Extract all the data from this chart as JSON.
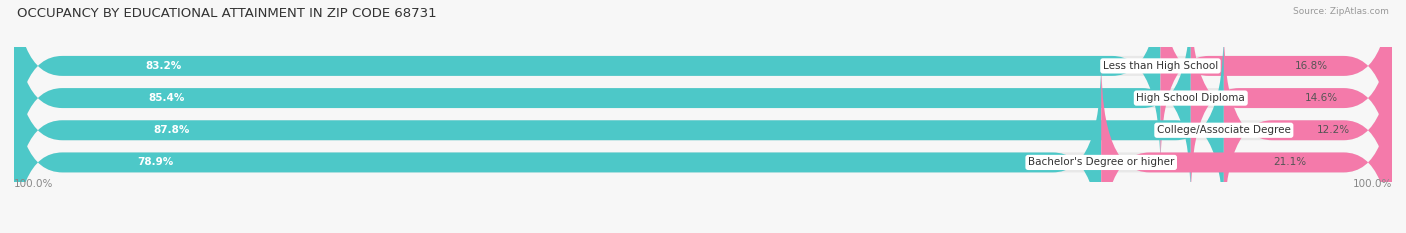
{
  "title": "OCCUPANCY BY EDUCATIONAL ATTAINMENT IN ZIP CODE 68731",
  "source": "Source: ZipAtlas.com",
  "categories": [
    "Less than High School",
    "High School Diploma",
    "College/Associate Degree",
    "Bachelor's Degree or higher"
  ],
  "owner_pct": [
    83.2,
    85.4,
    87.8,
    78.9
  ],
  "renter_pct": [
    16.8,
    14.6,
    12.2,
    21.1
  ],
  "owner_color": "#4dc8c8",
  "renter_color": "#f47aaa",
  "track_color": "#e8e8e8",
  "bar_height": 0.62,
  "background_color": "#f7f7f7",
  "title_fontsize": 9.5,
  "label_fontsize": 7.5,
  "tick_fontsize": 7.5,
  "legend_fontsize": 8,
  "axis_labels": [
    "100.0%",
    "100.0%"
  ],
  "owner_label_color": "#ffffff",
  "renter_label_color": "#555555",
  "category_label_color": "#333333",
  "rounding_size": 3.5
}
